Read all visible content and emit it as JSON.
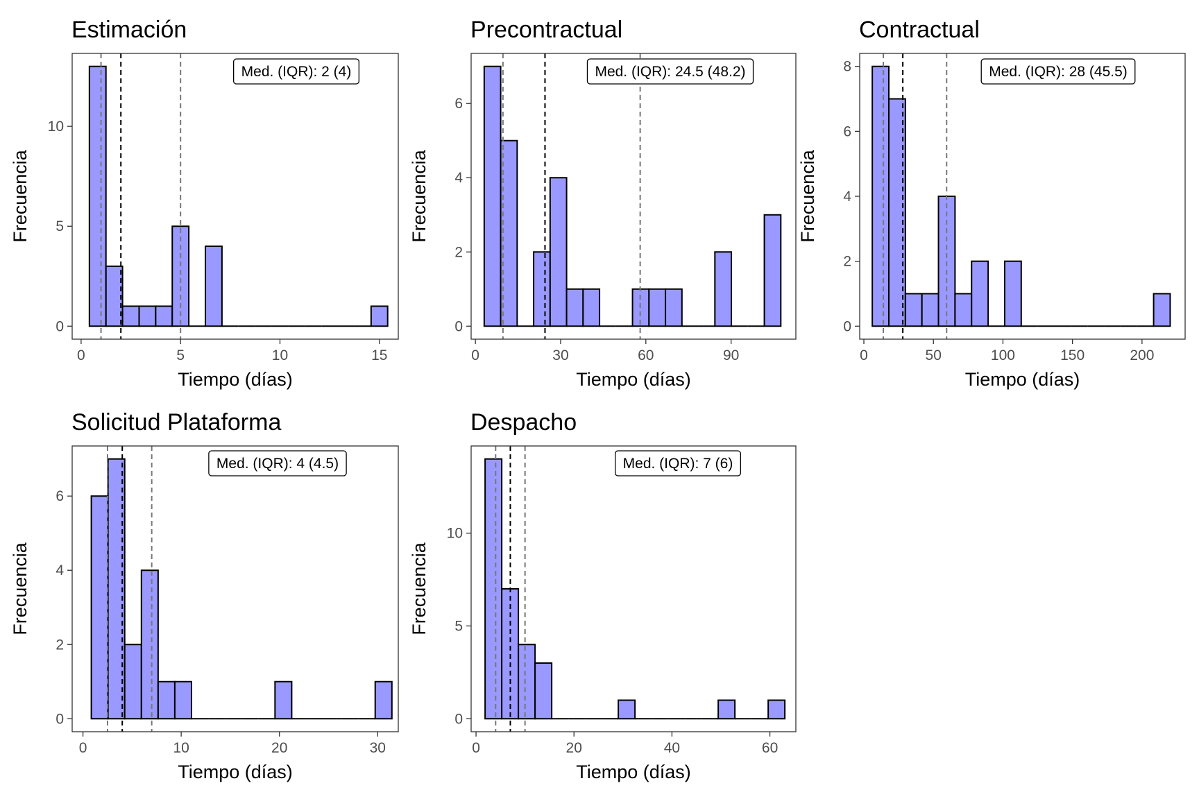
{
  "chart_data": [
    {
      "type": "bar",
      "title": "Estimación",
      "xlabel": "Tiempo (días)",
      "ylabel": "Frecuencia",
      "annotation": "Med. (IQR): 2 (4)",
      "xlim": [
        -0.45,
        15.95
      ],
      "ylim": [
        -0.65,
        13.65
      ],
      "xticks": [
        0,
        5,
        10,
        15
      ],
      "xtick_labels": [
        "0",
        "5",
        "10",
        "15"
      ],
      "yticks": [
        0,
        5,
        10
      ],
      "ytick_labels": [
        "0",
        "5",
        "10"
      ],
      "bin_width": 0.833,
      "bin_centers": [
        0.833,
        1.667,
        2.5,
        3.333,
        4.167,
        5.0,
        5.833,
        6.667,
        7.5,
        8.333,
        9.167,
        10.0,
        10.833,
        11.667,
        12.5,
        13.333,
        14.167,
        15.0
      ],
      "values": [
        13,
        3,
        1,
        1,
        1,
        5,
        0,
        4,
        0,
        0,
        0,
        0,
        0,
        0,
        0,
        0,
        0,
        1
      ],
      "median": 2,
      "q1": 1,
      "q3": 5,
      "bar_color": "#9999ff",
      "grid": false
    },
    {
      "type": "bar",
      "title": "Precontractual",
      "xlabel": "Tiempo (días)",
      "ylabel": "Frecuencia",
      "annotation": "Med. (IQR): 24.5 (48.2)",
      "xlim": [
        -1.5,
        112.8
      ],
      "ylim": [
        -0.35,
        7.35
      ],
      "xticks": [
        0,
        30,
        60,
        90
      ],
      "xtick_labels": [
        "0",
        "30",
        "60",
        "90"
      ],
      "yticks": [
        0,
        2,
        4,
        6
      ],
      "ytick_labels": [
        "0",
        "2",
        "4",
        "6"
      ],
      "bin_width": 5.8,
      "bin_centers": [
        6.0,
        11.8,
        17.6,
        23.4,
        29.2,
        35.0,
        40.8,
        46.6,
        52.4,
        58.2,
        64.0,
        69.8,
        75.6,
        81.4,
        87.2,
        93.0,
        98.8,
        104.6
      ],
      "values": [
        7,
        5,
        0,
        2,
        4,
        1,
        1,
        0,
        0,
        1,
        1,
        1,
        0,
        0,
        2,
        0,
        0,
        3
      ],
      "median": 24.5,
      "q1": 9.7,
      "q3": 58,
      "bar_color": "#9999ff",
      "grid": false
    },
    {
      "type": "bar",
      "title": "Contractual",
      "xlabel": "Tiempo (días)",
      "ylabel": "Frecuencia",
      "annotation": "Med. (IQR): 28 (45.5)",
      "xlim": [
        -3,
        231
      ],
      "ylim": [
        -0.4,
        8.4
      ],
      "xticks": [
        0,
        50,
        100,
        150,
        200
      ],
      "xtick_labels": [
        "0",
        "50",
        "100",
        "150",
        "200"
      ],
      "yticks": [
        0,
        2,
        4,
        6,
        8
      ],
      "ytick_labels": [
        "0",
        "2",
        "4",
        "6",
        "8"
      ],
      "bin_width": 11.9,
      "bin_centers": [
        12.0,
        23.9,
        35.8,
        47.7,
        59.6,
        71.5,
        83.4,
        95.3,
        107.2,
        119.1,
        131.0,
        142.9,
        154.8,
        166.7,
        178.6,
        190.5,
        202.4,
        214.3
      ],
      "values": [
        8,
        7,
        1,
        1,
        4,
        1,
        2,
        0,
        2,
        0,
        0,
        0,
        0,
        0,
        0,
        0,
        0,
        1
      ],
      "median": 28,
      "q1": 14,
      "q3": 59.5,
      "bar_color": "#9999ff",
      "grid": false
    },
    {
      "type": "bar",
      "title": "Solicitud Plataforma",
      "xlabel": "Tiempo (días)",
      "ylabel": "Frecuencia",
      "annotation": "Med. (IQR): 4 (4.5)",
      "xlim": [
        -1.1,
        32.1
      ],
      "ylim": [
        -0.35,
        7.35
      ],
      "xticks": [
        0,
        10,
        20,
        30
      ],
      "xtick_labels": [
        "0",
        "10",
        "20",
        "30"
      ],
      "yticks": [
        0,
        2,
        4,
        6
      ],
      "ytick_labels": [
        "0",
        "2",
        "4",
        "6"
      ],
      "bin_width": 1.7,
      "bin_centers": [
        1.7,
        3.4,
        5.1,
        6.8,
        8.5,
        10.2,
        11.9,
        13.6,
        15.3,
        17.0,
        18.7,
        20.4,
        22.1,
        23.8,
        25.5,
        27.2,
        28.9,
        30.6
      ],
      "values": [
        6,
        7,
        2,
        4,
        1,
        1,
        0,
        0,
        0,
        0,
        0,
        1,
        0,
        0,
        0,
        0,
        0,
        1
      ],
      "median": 4,
      "q1": 2.5,
      "q3": 7,
      "bar_color": "#9999ff",
      "grid": false
    },
    {
      "type": "bar",
      "title": "Despacho",
      "xlabel": "Tiempo (días)",
      "ylabel": "Frecuencia",
      "annotation": "Med. (IQR): 7 (6)",
      "xlim": [
        -1.0,
        65.3
      ],
      "ylim": [
        -0.7,
        14.7
      ],
      "xticks": [
        0,
        20,
        40,
        60
      ],
      "xtick_labels": [
        "0",
        "20",
        "40",
        "60"
      ],
      "yticks": [
        0,
        5,
        10
      ],
      "ytick_labels": [
        "0",
        "5",
        "10"
      ],
      "bin_width": 3.4,
      "bin_centers": [
        3.55,
        6.95,
        10.35,
        13.75,
        17.15,
        20.55,
        23.95,
        27.35,
        30.75,
        34.15,
        37.55,
        40.95,
        44.35,
        47.75,
        51.15,
        54.55,
        57.95,
        61.35
      ],
      "values": [
        14,
        7,
        4,
        3,
        0,
        0,
        0,
        0,
        1,
        0,
        0,
        0,
        0,
        0,
        1,
        0,
        0,
        1
      ],
      "median": 7,
      "q1": 4,
      "q3": 10,
      "bar_color": "#9999ff",
      "grid": false
    }
  ]
}
